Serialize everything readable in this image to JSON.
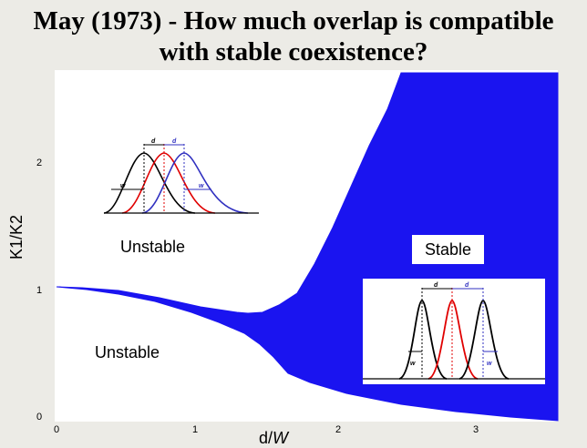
{
  "title": {
    "line1": "May (1973) - How much overlap is compatible",
    "line2": "with stable coexistence?"
  },
  "axes": {
    "x_label": "d/W",
    "y_label": "K1/K2",
    "x_ticks": [
      "0",
      "1",
      "2",
      "3"
    ],
    "y_ticks": [
      "0",
      "1",
      "2"
    ]
  },
  "regions": {
    "unstable_upper": "Unstable",
    "unstable_lower": "Unstable",
    "stable": "Stable"
  },
  "inset_left": {
    "d_label_1": "d",
    "d_label_2": "d",
    "w_label_1": "w",
    "w_label_2": "w",
    "curve_colors": [
      "#000000",
      "#e00000",
      "#3030c0"
    ]
  },
  "inset_right": {
    "d_label_1": "d",
    "d_label_2": "d",
    "w_label_1": "w",
    "w_label_2": "w",
    "curve_colors": [
      "#000000",
      "#e00000",
      "#3030c0"
    ]
  },
  "colors": {
    "stable_region": "#1a14f0",
    "background": "#ecebe6"
  }
}
